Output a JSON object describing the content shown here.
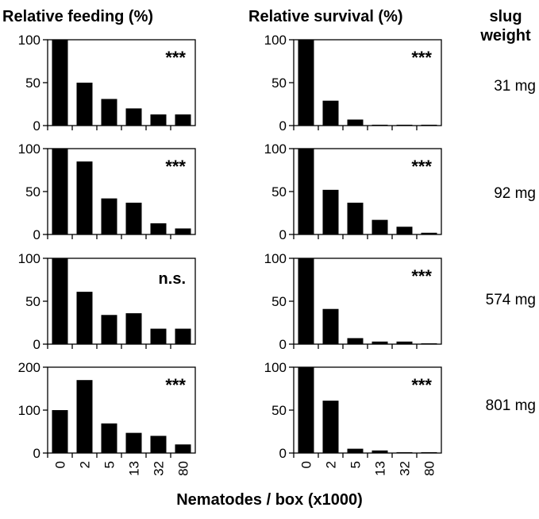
{
  "headers": {
    "feeding": "Relative feeding (%)",
    "survival": "Relative survival (%)",
    "weight_line1": "slug",
    "weight_line2": "weight"
  },
  "xlabel": "Nematodes / box (x1000)",
  "weights": [
    "31 mg",
    "92 mg",
    "574 mg",
    "801 mg"
  ],
  "chart_data": [
    {
      "type": "bar",
      "row": 1,
      "column": "feeding",
      "categories": [
        "0",
        "2",
        "5",
        "13",
        "32",
        "80"
      ],
      "values": [
        100,
        50,
        31,
        20,
        13,
        13
      ],
      "ylim": [
        0,
        100
      ],
      "yticks": [
        0,
        50,
        100
      ],
      "annotation": "***"
    },
    {
      "type": "bar",
      "row": 1,
      "column": "survival",
      "categories": [
        "0",
        "2",
        "5",
        "13",
        "32",
        "80"
      ],
      "values": [
        100,
        29,
        7,
        1,
        1,
        1
      ],
      "ylim": [
        0,
        100
      ],
      "yticks": [
        0,
        50,
        100
      ],
      "annotation": "***"
    },
    {
      "type": "bar",
      "row": 2,
      "column": "feeding",
      "categories": [
        "0",
        "2",
        "5",
        "13",
        "32",
        "80"
      ],
      "values": [
        100,
        85,
        42,
        37,
        13,
        7
      ],
      "ylim": [
        0,
        100
      ],
      "yticks": [
        0,
        50,
        100
      ],
      "annotation": "***"
    },
    {
      "type": "bar",
      "row": 2,
      "column": "survival",
      "categories": [
        "0",
        "2",
        "5",
        "13",
        "32",
        "80"
      ],
      "values": [
        100,
        52,
        37,
        17,
        9,
        2
      ],
      "ylim": [
        0,
        100
      ],
      "yticks": [
        0,
        50,
        100
      ],
      "annotation": "***"
    },
    {
      "type": "bar",
      "row": 3,
      "column": "feeding",
      "categories": [
        "0",
        "2",
        "5",
        "13",
        "32",
        "80"
      ],
      "values": [
        100,
        61,
        34,
        36,
        18,
        18
      ],
      "ylim": [
        0,
        100
      ],
      "yticks": [
        0,
        50,
        100
      ],
      "annotation": "n.s."
    },
    {
      "type": "bar",
      "row": 3,
      "column": "survival",
      "categories": [
        "0",
        "2",
        "5",
        "13",
        "32",
        "80"
      ],
      "values": [
        100,
        41,
        7,
        3,
        3,
        1
      ],
      "ylim": [
        0,
        100
      ],
      "yticks": [
        0,
        50,
        100
      ],
      "annotation": "***"
    },
    {
      "type": "bar",
      "row": 4,
      "column": "feeding",
      "categories": [
        "0",
        "2",
        "5",
        "13",
        "32",
        "80"
      ],
      "values": [
        100,
        170,
        69,
        47,
        40,
        20
      ],
      "ylim": [
        0,
        200
      ],
      "yticks": [
        0,
        100,
        200
      ],
      "annotation": "***"
    },
    {
      "type": "bar",
      "row": 4,
      "column": "survival",
      "categories": [
        "0",
        "2",
        "5",
        "13",
        "32",
        "80"
      ],
      "values": [
        100,
        61,
        5,
        3,
        1,
        1
      ],
      "ylim": [
        0,
        100
      ],
      "yticks": [
        0,
        50,
        100
      ],
      "annotation": "***"
    }
  ]
}
